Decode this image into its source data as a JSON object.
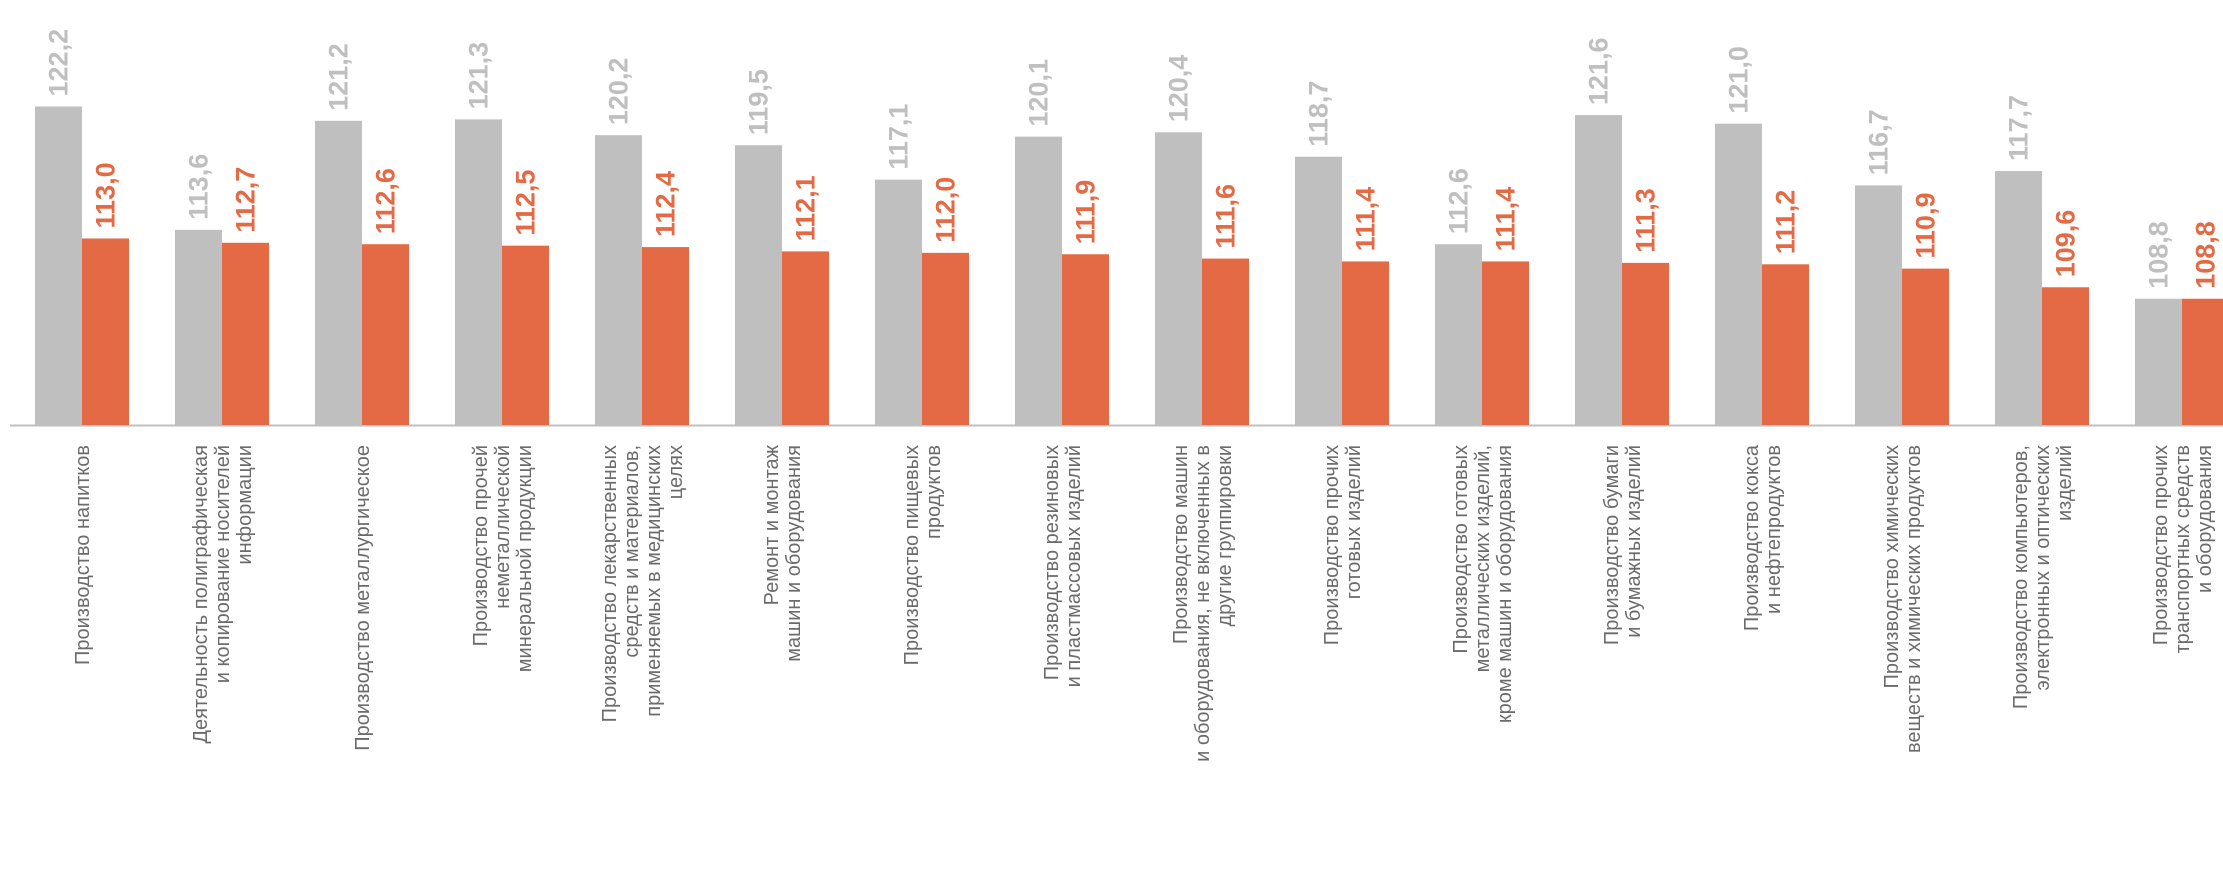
{
  "chart_data": {
    "type": "bar",
    "orientation": "vertical",
    "categories": [
      [
        "Производство напитков"
      ],
      [
        "Деятельность полиграфическая",
        "и копирование носителей",
        "информации"
      ],
      [
        "Производство металлургическое"
      ],
      [
        "Производство прочей",
        "неметаллической",
        "минеральной продукции"
      ],
      [
        "Производство лекарственных",
        "средств и материалов,",
        "применяемых в медицинских",
        "целях"
      ],
      [
        "Ремонт и монтаж",
        "машин и оборудования"
      ],
      [
        "Производство пищевых",
        "продуктов"
      ],
      [
        "Производство резиновых",
        "и пластмассовых изделий"
      ],
      [
        "Производство машин",
        "и оборудования, не включенных в",
        "другие группировки"
      ],
      [
        "Производство прочих",
        "готовых изделий"
      ],
      [
        "Производство готовых",
        "металлических изделий,",
        "кроме машин и оборудования"
      ],
      [
        "Производство бумаги",
        "и бумажных изделий"
      ],
      [
        "Производство кокса",
        "и нефтепродуктов"
      ],
      [
        "Производство химических",
        "веществ и химических продуктов"
      ],
      [
        "Производство компьютеров,",
        "электронных и оптических",
        "изделий"
      ],
      [
        "Производство прочих",
        "транспортных средств",
        "и оборудования"
      ]
    ],
    "series": [
      {
        "color": "#bfbfbf",
        "label_color": "#bfbfbf",
        "values": [
          122.2,
          113.6,
          121.2,
          121.3,
          120.2,
          119.5,
          117.1,
          120.1,
          120.4,
          118.7,
          112.6,
          121.6,
          121.0,
          116.7,
          117.7,
          108.8
        ],
        "labels": [
          "122,2",
          "113,6",
          "121,2",
          "121,3",
          "120,2",
          "119,5",
          "117,1",
          "120,1",
          "120,4",
          "118,7",
          "112,6",
          "121,6",
          "121,0",
          "116,7",
          "117,7",
          "108,8"
        ]
      },
      {
        "color": "#e36a45",
        "label_color": "#e36a45",
        "values": [
          113.0,
          112.7,
          112.6,
          112.5,
          112.4,
          112.1,
          112.0,
          111.9,
          111.6,
          111.4,
          111.4,
          111.3,
          111.2,
          110.9,
          109.6,
          108.8
        ],
        "labels": [
          "113,0",
          "112,7",
          "112,6",
          "112,5",
          "112,4",
          "112,1",
          "112,0",
          "111,9",
          "111,6",
          "111,4",
          "111,4",
          "111,3",
          "111,2",
          "110,9",
          "109,6",
          "108,8"
        ]
      }
    ],
    "ylim": [
      100,
      123
    ],
    "grid": false,
    "legend": "none",
    "value_labels": "rotated-vertical",
    "baseline_color": "#bfbfbf"
  }
}
